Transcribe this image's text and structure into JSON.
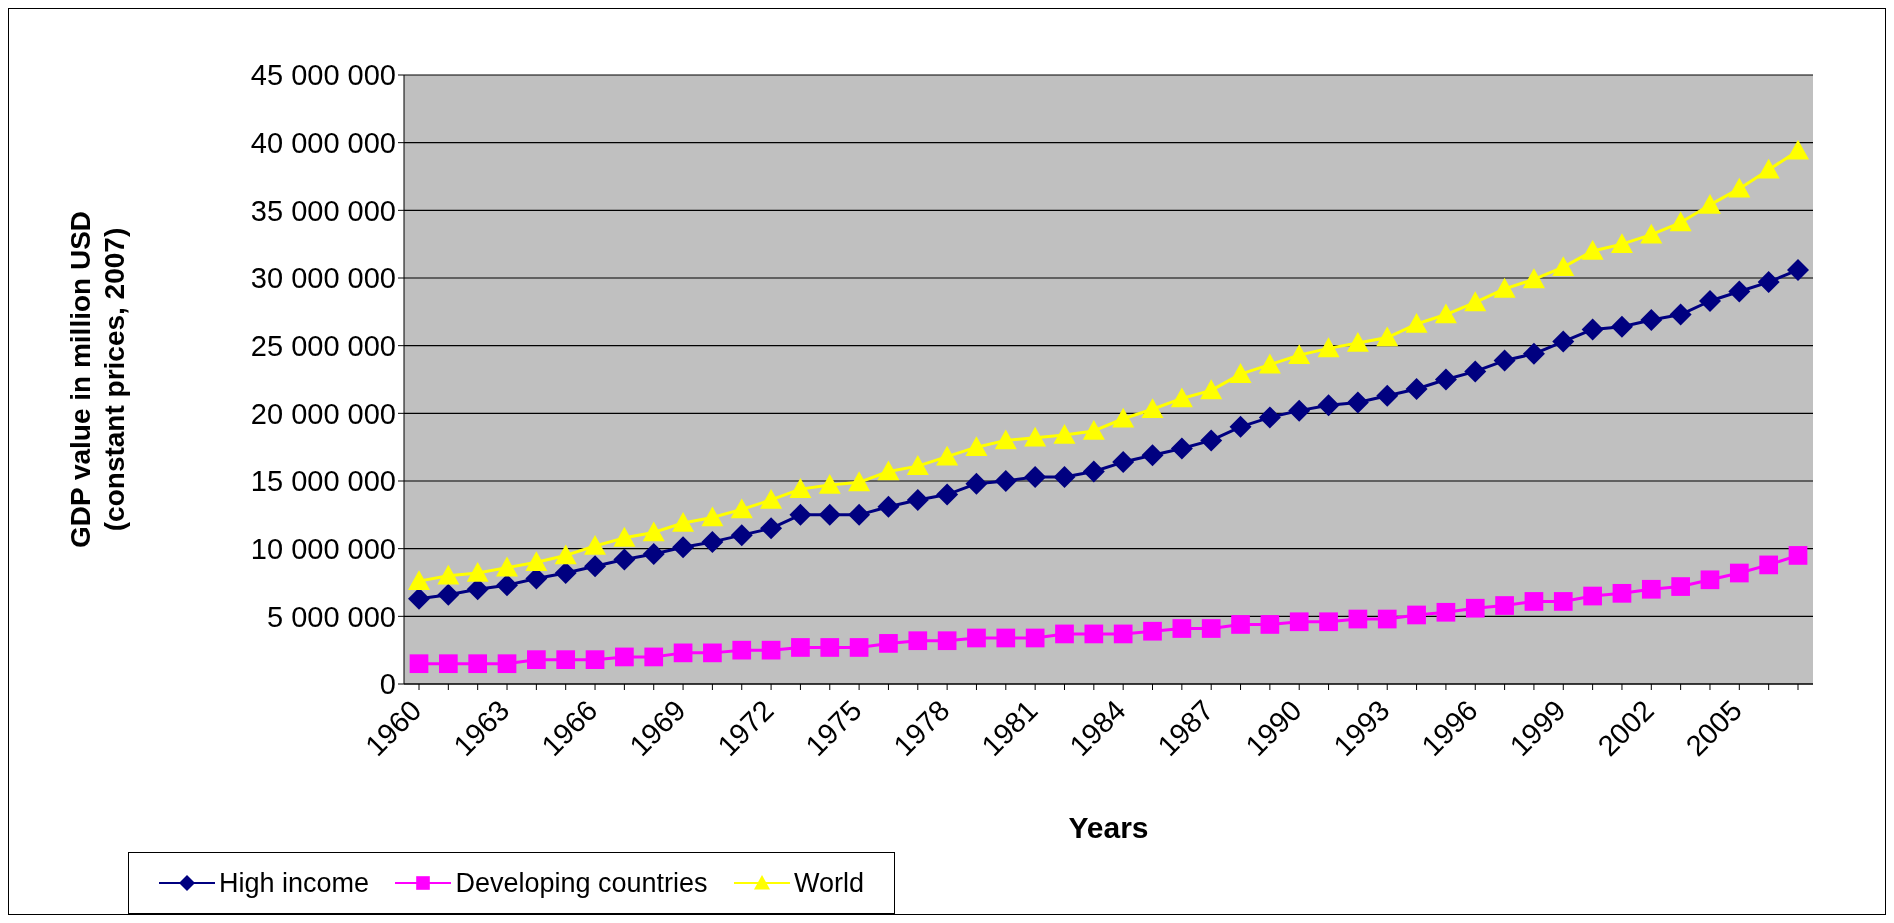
{
  "chart_data": {
    "type": "line",
    "xlabel": "Years",
    "ylabel": "GDP value in million USD\n(constant prices, 2007)",
    "categories": [
      "1960",
      null,
      null,
      "1963",
      null,
      null,
      "1966",
      null,
      null,
      "1969",
      null,
      null,
      "1972",
      null,
      null,
      "1975",
      null,
      null,
      "1978",
      null,
      null,
      "1981",
      null,
      null,
      "1984",
      null,
      null,
      "1987",
      null,
      null,
      "1990",
      null,
      null,
      "1993",
      null,
      null,
      "1996",
      null,
      null,
      "1999",
      null,
      null,
      "2002",
      null,
      null,
      "2005",
      null,
      null
    ],
    "series": [
      {
        "name": "High income",
        "color": "#000080",
        "marker": "diamond",
        "values": [
          6300000,
          6600000,
          7000000,
          7300000,
          7800000,
          8200000,
          8700000,
          9200000,
          9600000,
          10100000,
          10500000,
          11000000,
          11500000,
          12500000,
          12500000,
          12500000,
          13100000,
          13600000,
          14000000,
          14800000,
          15000000,
          15300000,
          15300000,
          15700000,
          16400000,
          16900000,
          17400000,
          18000000,
          19000000,
          19700000,
          20200000,
          20600000,
          20800000,
          21300000,
          21800000,
          22500000,
          23100000,
          23900000,
          24400000,
          25300000,
          26200000,
          26400000,
          26900000,
          27300000,
          28300000,
          29000000,
          29700000,
          30600000
        ]
      },
      {
        "name": "Developing countries",
        "color": "#ff00ff",
        "marker": "square",
        "values": [
          1500000,
          1500000,
          1500000,
          1500000,
          1800000,
          1800000,
          1800000,
          2000000,
          2000000,
          2300000,
          2300000,
          2500000,
          2500000,
          2700000,
          2700000,
          2700000,
          3000000,
          3200000,
          3200000,
          3400000,
          3400000,
          3400000,
          3700000,
          3700000,
          3700000,
          3900000,
          4100000,
          4100000,
          4400000,
          4400000,
          4600000,
          4600000,
          4800000,
          4800000,
          5100000,
          5300000,
          5600000,
          5800000,
          6100000,
          6100000,
          6500000,
          6700000,
          7000000,
          7200000,
          7700000,
          8200000,
          8800000,
          9500000
        ]
      },
      {
        "name": "World",
        "color": "#ffff00",
        "marker": "triangle",
        "values": [
          7600000,
          8000000,
          8200000,
          8600000,
          9000000,
          9500000,
          10200000,
          10800000,
          11200000,
          11900000,
          12300000,
          12900000,
          13600000,
          14400000,
          14700000,
          14900000,
          15700000,
          16100000,
          16800000,
          17500000,
          18000000,
          18200000,
          18400000,
          18700000,
          19600000,
          20300000,
          21100000,
          21700000,
          22900000,
          23600000,
          24300000,
          24800000,
          25200000,
          25600000,
          26600000,
          27300000,
          28200000,
          29200000,
          29900000,
          30800000,
          32000000,
          32500000,
          33200000,
          34100000,
          35400000,
          36600000,
          38000000,
          39400000
        ]
      }
    ],
    "ylim": [
      0,
      45000000
    ],
    "yticks": [
      {
        "value": 0,
        "label": "0"
      },
      {
        "value": 5000000,
        "label": "5 000 000"
      },
      {
        "value": 10000000,
        "label": "10 000 000"
      },
      {
        "value": 15000000,
        "label": "15 000 000"
      },
      {
        "value": 20000000,
        "label": "20 000 000"
      },
      {
        "value": 25000000,
        "label": "25 000 000"
      },
      {
        "value": 30000000,
        "label": "30 000 000"
      },
      {
        "value": 35000000,
        "label": "35 000 000"
      },
      {
        "value": 40000000,
        "label": "40 000 000"
      },
      {
        "value": 45000000,
        "label": "45 000 000"
      }
    ],
    "grid": "y",
    "legend": "bottom",
    "line_style": "solid"
  }
}
